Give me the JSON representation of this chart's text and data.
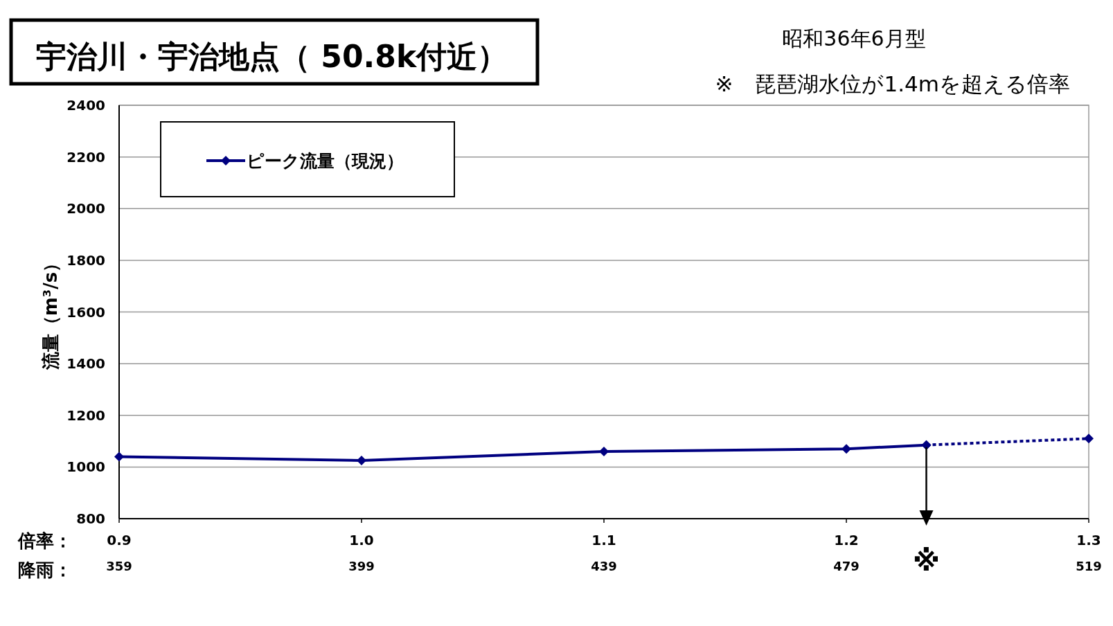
{
  "chart_data": {
    "type": "line",
    "title": "宇治川・宇治地点（ 50.8k付近）",
    "subtitle": "昭和36年6月型",
    "ylabel": "流量（m³/s）",
    "annotations": [
      "※　琵琶湖水位が1.4mを超える倍率",
      "倍率：",
      "降雨：",
      {
        "text": "※",
        "x": 1.233,
        "y": 1085
      }
    ],
    "series": [
      {
        "name": "ピーク流量（現況）",
        "color": "#000080",
        "x": [
          0.9,
          1.0,
          1.1,
          1.2,
          1.233
        ],
        "values": [
          1040,
          1025,
          1060,
          1070,
          1085
        ],
        "marker": "diamond",
        "line_style": "solid"
      },
      {
        "color": "#000080",
        "x": [
          1.233,
          1.3
        ],
        "values": [
          1085,
          1110
        ],
        "marker": "diamond",
        "line_style": "dotted"
      }
    ],
    "xlim": [
      0.9,
      1.3
    ],
    "xticks": [
      0.9,
      {
        "value": 1.0,
        "label": "1.0"
      },
      1.1,
      1.2,
      1.3
    ],
    "x2lim": [
      359,
      519
    ],
    "x2ticks": [
      359,
      399,
      439,
      479,
      519
    ],
    "ylim": [
      800,
      2400
    ],
    "yticks": [
      800,
      1000,
      1200,
      1400,
      1600,
      1800,
      2000,
      2200,
      2400
    ],
    "grid": "y",
    "legend": "top left"
  }
}
